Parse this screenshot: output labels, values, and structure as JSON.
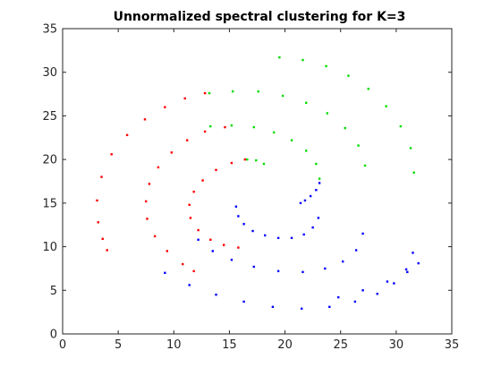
{
  "chart_data": {
    "type": "scatter",
    "title": "Unnormalized spectral clustering for K=3",
    "xlabel": "",
    "ylabel": "",
    "xlim": [
      0,
      35
    ],
    "ylim": [
      0,
      35
    ],
    "xticks": [
      0,
      5,
      10,
      15,
      20,
      25,
      30,
      35
    ],
    "yticks": [
      0,
      5,
      10,
      15,
      20,
      25,
      30,
      35
    ],
    "grid": false,
    "legend": "none",
    "series": [
      {
        "color": "#ff0000",
        "x": [
          16.4,
          15.2,
          13.8,
          12.6,
          11.8,
          11.4,
          11.5,
          12.2,
          13.3,
          14.5,
          15.8,
          14.6,
          12.8,
          11.2,
          9.8,
          8.6,
          7.8,
          7.5,
          7.6,
          8.3,
          9.4,
          10.8,
          11.8,
          12.8,
          11.0,
          9.2,
          7.4,
          5.8,
          4.4,
          3.5,
          3.1,
          3.2,
          3.6,
          4.0
        ],
        "y": [
          20.0,
          19.6,
          18.8,
          17.6,
          16.3,
          14.8,
          13.3,
          11.9,
          10.8,
          10.2,
          9.9,
          23.7,
          23.2,
          22.2,
          20.8,
          19.1,
          17.2,
          15.2,
          13.2,
          11.2,
          9.5,
          8.0,
          7.2,
          27.6,
          27.0,
          26.0,
          24.6,
          22.8,
          20.6,
          18.0,
          15.3,
          12.8,
          10.9,
          9.6
        ]
      },
      {
        "color": "#00dd00",
        "x": [
          16.6,
          17.4,
          18.1,
          13.3,
          15.2,
          17.2,
          19.0,
          20.6,
          21.9,
          22.8,
          23.1,
          13.2,
          15.3,
          17.6,
          19.8,
          21.9,
          23.8,
          25.4,
          26.6,
          27.2,
          19.5,
          21.6,
          23.7,
          25.7,
          27.5,
          29.1,
          30.4,
          31.3,
          31.6
        ],
        "y": [
          20.0,
          19.9,
          19.5,
          23.8,
          23.9,
          23.7,
          23.1,
          22.2,
          21.0,
          19.5,
          17.8,
          27.6,
          27.8,
          27.8,
          27.3,
          26.5,
          25.3,
          23.6,
          21.6,
          19.3,
          31.7,
          31.4,
          30.7,
          29.6,
          28.1,
          26.1,
          23.8,
          21.3,
          18.5
        ]
      },
      {
        "color": "#0000ff",
        "x": [
          15.6,
          15.8,
          16.3,
          17.1,
          18.2,
          19.4,
          20.6,
          21.7,
          22.5,
          23.0,
          21.4,
          21.8,
          22.3,
          22.8,
          23.1,
          12.2,
          13.5,
          15.2,
          17.2,
          19.4,
          21.6,
          23.6,
          25.2,
          26.4,
          27.0,
          9.2,
          11.4,
          13.8,
          16.3,
          18.9,
          21.5,
          24.0,
          26.3,
          28.3,
          29.8,
          30.9,
          31.5,
          24.8,
          27.0,
          29.2,
          31.0,
          32.0
        ],
        "y": [
          14.6,
          13.5,
          12.6,
          11.8,
          11.3,
          11.0,
          11.0,
          11.4,
          12.2,
          13.3,
          15.0,
          15.3,
          15.8,
          16.5,
          17.3,
          10.8,
          9.5,
          8.5,
          7.7,
          7.2,
          7.1,
          7.5,
          8.3,
          9.6,
          11.5,
          7.0,
          5.6,
          4.5,
          3.7,
          3.1,
          2.9,
          3.1,
          3.7,
          4.6,
          5.8,
          7.4,
          9.3,
          4.2,
          5.0,
          6.0,
          7.1,
          8.1
        ]
      }
    ]
  }
}
